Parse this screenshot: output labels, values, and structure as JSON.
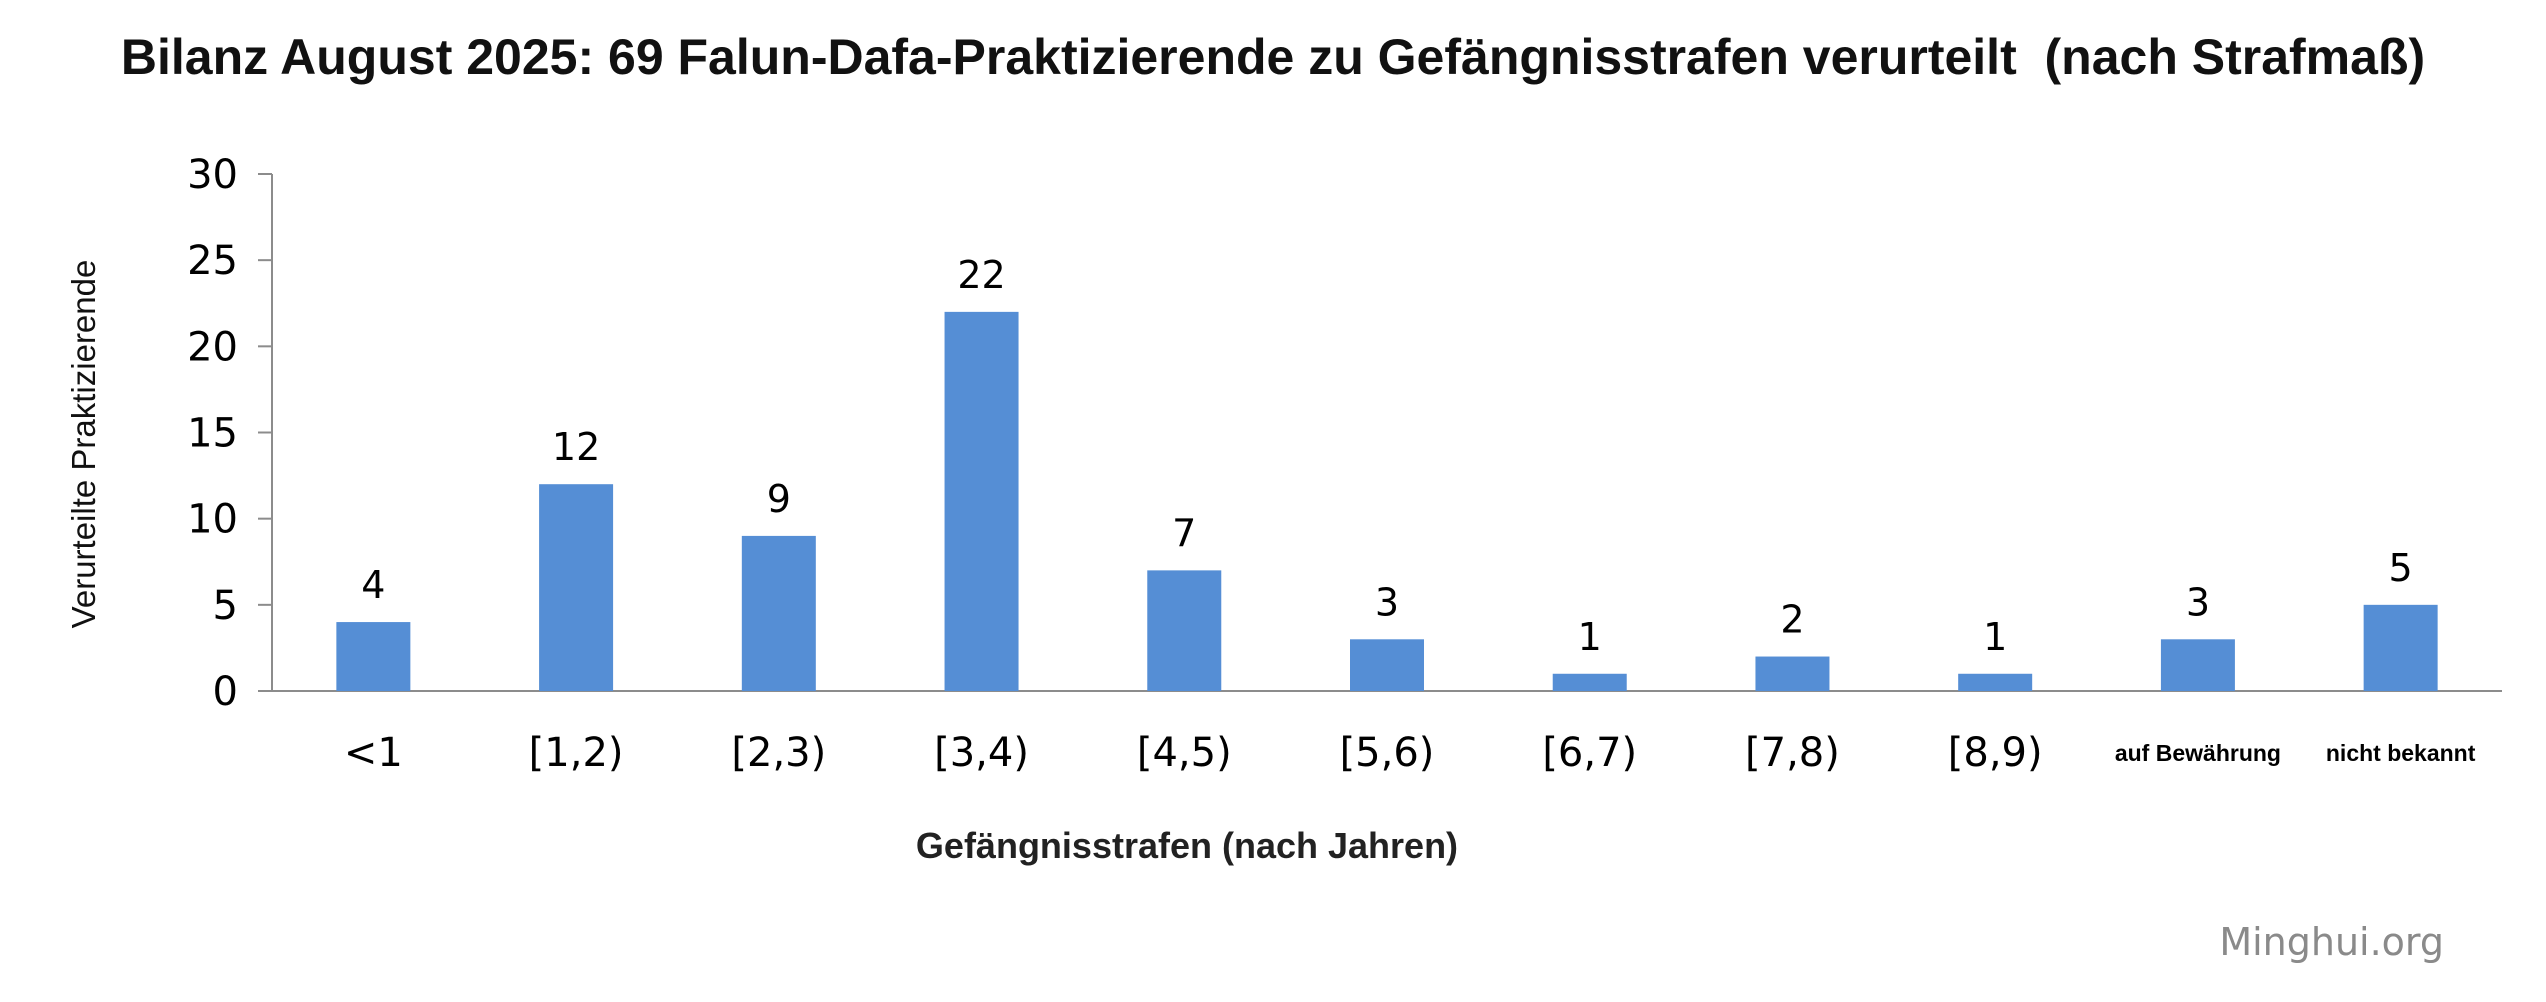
{
  "chart_data": {
    "type": "bar",
    "title": "Bilanz August 2025: 69 Falun-Dafa-Praktizierende zu Gefängnisstrafen verurteilt  (nach Strafmaß)",
    "xlabel": "Gefängnisstrafen (nach Jahren)",
    "ylabel": "Verurteilte Praktizierende",
    "categories": [
      "<1",
      "[1,2)",
      "[2,3)",
      "[3,4)",
      "[4,5)",
      "[5,6)",
      "[6,7)",
      "[7,8)",
      "[8,9)",
      "auf Bewährung",
      "nicht bekannt"
    ],
    "values": [
      4,
      12,
      9,
      22,
      7,
      3,
      1,
      2,
      1,
      3,
      5
    ],
    "ylim": [
      0,
      30
    ],
    "yticks": [
      0,
      5,
      10,
      15,
      20,
      25,
      30
    ],
    "grid": false,
    "data_labels": true,
    "bar_color": "#558ED5"
  },
  "watermark": "Minghui.org"
}
